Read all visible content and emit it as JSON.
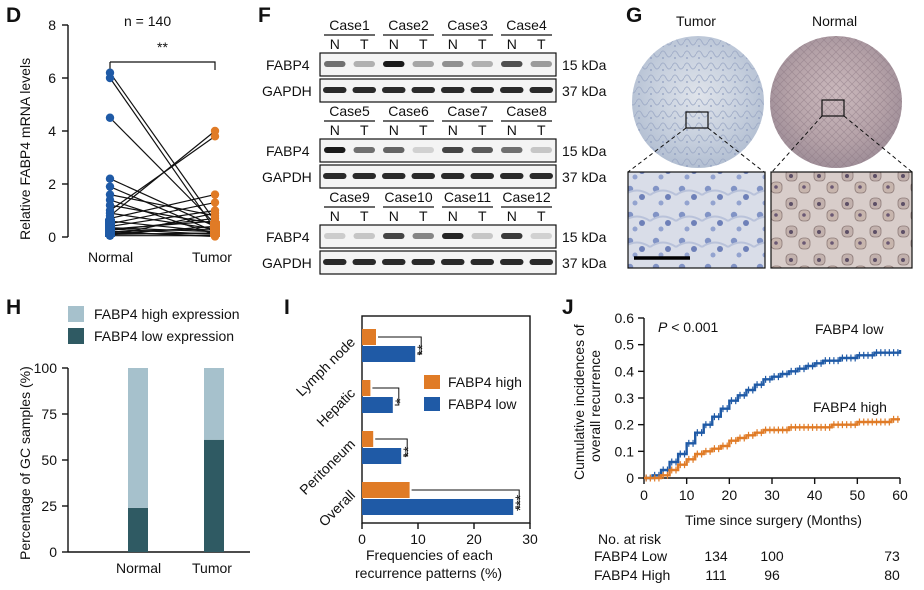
{
  "panel_letters": {
    "d": "D",
    "f": "F",
    "g": "G",
    "h": "H",
    "i": "I",
    "j": "J"
  },
  "colors": {
    "normal_blue": "#1f5aa6",
    "tumor_orange": "#e07b26",
    "high_expr": "#a6c1cc",
    "low_expr": "#2f5a63",
    "bar_orange": "#e07b26",
    "bar_blue": "#1f5aa6",
    "curve_blue": "#1f5aa6",
    "curve_orange": "#e07b26"
  },
  "blot": {
    "blocks": [
      {
        "cases": [
          "Case1",
          "Case2",
          "Case3",
          "Case4"
        ],
        "lane_labels": [
          "N",
          "T",
          "N",
          "T",
          "N",
          "T",
          "N",
          "T"
        ],
        "fabp4_intensity": [
          0.55,
          0.25,
          0.95,
          0.3,
          0.4,
          0.25,
          0.7,
          0.35
        ]
      },
      {
        "cases": [
          "Case5",
          "Case6",
          "Case7",
          "Case8"
        ],
        "lane_labels": [
          "N",
          "T",
          "N",
          "T",
          "N",
          "T",
          "N",
          "T"
        ],
        "fabp4_intensity": [
          0.95,
          0.55,
          0.6,
          0.1,
          0.75,
          0.65,
          0.55,
          0.15
        ]
      },
      {
        "cases": [
          "Case9",
          "Case10",
          "Case11",
          "Case12"
        ],
        "lane_labels": [
          "N",
          "T",
          "N",
          "T",
          "N",
          "T",
          "N",
          "T"
        ],
        "fabp4_intensity": [
          0.12,
          0.15,
          0.75,
          0.45,
          0.9,
          0.15,
          0.8,
          0.1
        ]
      }
    ],
    "row_fabp4": "FABP4",
    "row_gapdh": "GAPDH",
    "size_fabp4": "15 kDa",
    "size_gapdh": "37 kDa"
  },
  "ihc": {
    "tumor_label": "Tumor",
    "normal_label": "Normal"
  },
  "chart_data": [
    {
      "panel": "D",
      "type": "scatter",
      "title": "n = 140",
      "ylabel": "Relative FABP4 mRNA levels",
      "categories": [
        "Normal",
        "Tumor"
      ],
      "ylim": [
        0,
        8
      ],
      "yticks": [
        0,
        2,
        4,
        6,
        8
      ],
      "significance": "**",
      "paired_points": [
        [
          6.2,
          0.6
        ],
        [
          6.0,
          0.3
        ],
        [
          4.5,
          0.5
        ],
        [
          2.2,
          0.4
        ],
        [
          1.9,
          0.2
        ],
        [
          1.6,
          0.8
        ],
        [
          1.4,
          0.1
        ],
        [
          1.2,
          0.5
        ],
        [
          1.0,
          3.8
        ],
        [
          0.9,
          0.3
        ],
        [
          0.8,
          4.0
        ],
        [
          0.7,
          1.6
        ],
        [
          0.6,
          0.2
        ],
        [
          0.5,
          1.3
        ],
        [
          0.4,
          1.0
        ],
        [
          0.35,
          0.2
        ],
        [
          0.3,
          0.1
        ],
        [
          0.25,
          0.7
        ],
        [
          0.2,
          0.3
        ],
        [
          0.15,
          0.05
        ],
        [
          0.1,
          0.4
        ],
        [
          0.05,
          0.9
        ],
        [
          0.05,
          0.05
        ],
        [
          0.1,
          0.15
        ],
        [
          0.2,
          0.02
        ],
        [
          0.3,
          0.6
        ]
      ]
    },
    {
      "panel": "H",
      "type": "bar",
      "stacked": true,
      "ylabel": "Percentage of GC samples (%)",
      "categories": [
        "Normal",
        "Tumor"
      ],
      "series": [
        {
          "name": "FABP4 low expression",
          "values": [
            24,
            61
          ]
        },
        {
          "name": "FABP4 high expression",
          "values": [
            76,
            39
          ]
        }
      ],
      "ylim": [
        0,
        100
      ],
      "yticks": [
        0,
        25,
        50,
        75,
        100
      ],
      "legend": [
        "FABP4 high expression",
        "FABP4 low expression"
      ]
    },
    {
      "panel": "I",
      "type": "bar",
      "orientation": "horizontal",
      "xlabel": "Frequencies of each recurrence patterns (%)",
      "categories": [
        "Lymph node",
        "Hepatic",
        "Peritoneum",
        "Overall"
      ],
      "series": [
        {
          "name": "FABP4 high",
          "values": [
            2.5,
            1.5,
            2.0,
            8.5
          ]
        },
        {
          "name": "FABP4 low",
          "values": [
            9.5,
            5.5,
            7.0,
            27.0
          ]
        }
      ],
      "significance": [
        "**",
        "*",
        "**",
        "***"
      ],
      "xlim": [
        0,
        30
      ],
      "xticks": [
        0,
        10,
        20,
        30
      ]
    },
    {
      "panel": "J",
      "type": "line",
      "ylabel": "Cumulative incidences of overall recurrence",
      "xlabel": "Time since surgery (Months)",
      "annotation": "P < 0.001",
      "annotation_p": "P",
      "annotation_rest": " < 0.001",
      "xlim": [
        0,
        60
      ],
      "ylim": [
        0,
        0.6
      ],
      "xticks": [
        0,
        10,
        20,
        30,
        40,
        50,
        60
      ],
      "yticks": [
        0,
        0.1,
        0.2,
        0.3,
        0.4,
        0.5,
        0.6
      ],
      "series": [
        {
          "name": "FABP4 low",
          "x": [
            0,
            2,
            4,
            6,
            8,
            10,
            12,
            14,
            16,
            18,
            20,
            22,
            24,
            26,
            28,
            30,
            32,
            34,
            36,
            38,
            40,
            42,
            44,
            46,
            48,
            50,
            52,
            54,
            56,
            58,
            60
          ],
          "y": [
            0,
            0.01,
            0.03,
            0.06,
            0.09,
            0.13,
            0.17,
            0.2,
            0.23,
            0.26,
            0.29,
            0.31,
            0.33,
            0.35,
            0.37,
            0.38,
            0.39,
            0.4,
            0.41,
            0.42,
            0.43,
            0.44,
            0.44,
            0.45,
            0.45,
            0.46,
            0.46,
            0.47,
            0.47,
            0.47,
            0.48
          ]
        },
        {
          "name": "FABP4 high",
          "x": [
            0,
            2,
            4,
            6,
            8,
            10,
            12,
            14,
            16,
            18,
            20,
            22,
            24,
            26,
            28,
            30,
            32,
            34,
            36,
            38,
            40,
            42,
            44,
            46,
            48,
            50,
            52,
            54,
            56,
            58,
            60
          ],
          "y": [
            0,
            0.0,
            0.01,
            0.03,
            0.05,
            0.07,
            0.09,
            0.1,
            0.11,
            0.12,
            0.14,
            0.15,
            0.16,
            0.17,
            0.18,
            0.18,
            0.18,
            0.19,
            0.19,
            0.19,
            0.19,
            0.19,
            0.2,
            0.2,
            0.2,
            0.21,
            0.21,
            0.21,
            0.21,
            0.22,
            0.22
          ]
        }
      ],
      "labels": {
        "low": "FABP4 low",
        "high": "FABP4 high"
      },
      "risk_table": {
        "header": "No. at risk",
        "rows": [
          {
            "label": "FABP4 Low",
            "values": [
              "134",
              "100",
              "73"
            ]
          },
          {
            "label": "FABP4 High",
            "values": [
              "111",
              "96",
              "80"
            ]
          }
        ]
      }
    }
  ]
}
